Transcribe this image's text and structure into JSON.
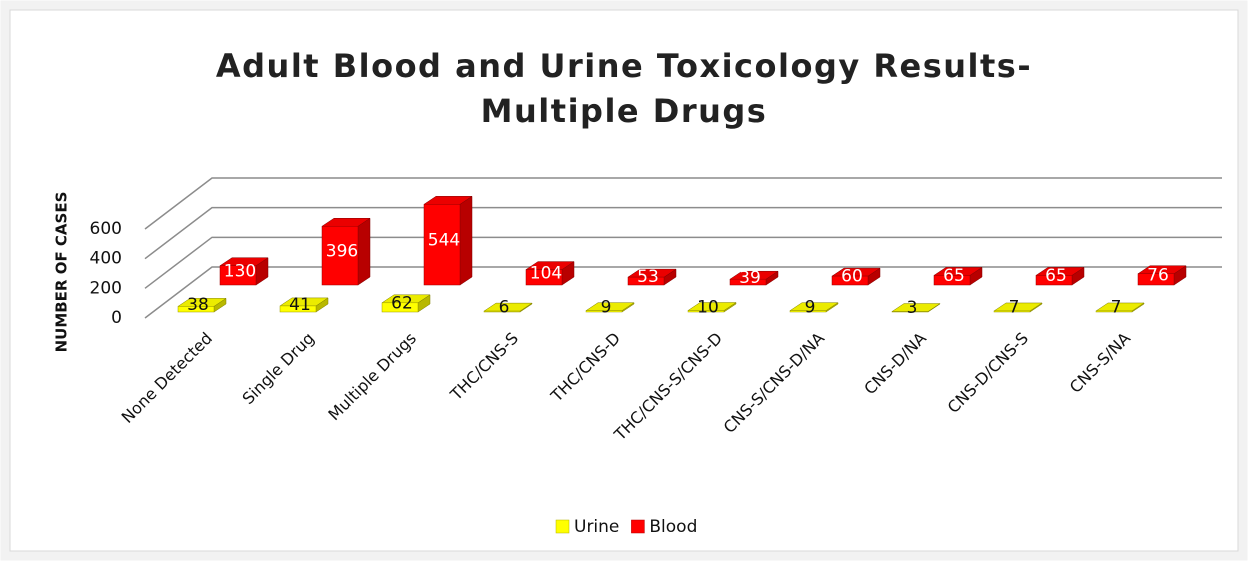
{
  "chart_data": {
    "type": "bar3d",
    "title": [
      "Adult Blood and Urine Toxicology Results-",
      "Multiple Drugs"
    ],
    "y_label": "NUMBER OF CASES",
    "categories": [
      "None Detected",
      "Single Drug",
      "Multiple Drugs",
      "THC/CNS-S",
      "THC/CNS-D",
      "THC/CNS-S/CNS-D",
      "CNS-S/CNS-D/NA",
      "CNS-D/NA",
      "CNS-D/CNS-S",
      "CNS-S/NA"
    ],
    "series": [
      {
        "name": "Urine",
        "color": "#ffff00",
        "values": [
          38,
          41,
          62,
          6,
          9,
          10,
          9,
          3,
          7,
          7
        ]
      },
      {
        "name": "Blood",
        "color": "#ff0000",
        "values": [
          130,
          396,
          544,
          104,
          53,
          39,
          60,
          65,
          65,
          76
        ]
      }
    ],
    "ylim": [
      0,
      600
    ],
    "yticks": [
      0,
      200,
      400,
      600
    ],
    "grid": true,
    "legend": "bottom"
  }
}
